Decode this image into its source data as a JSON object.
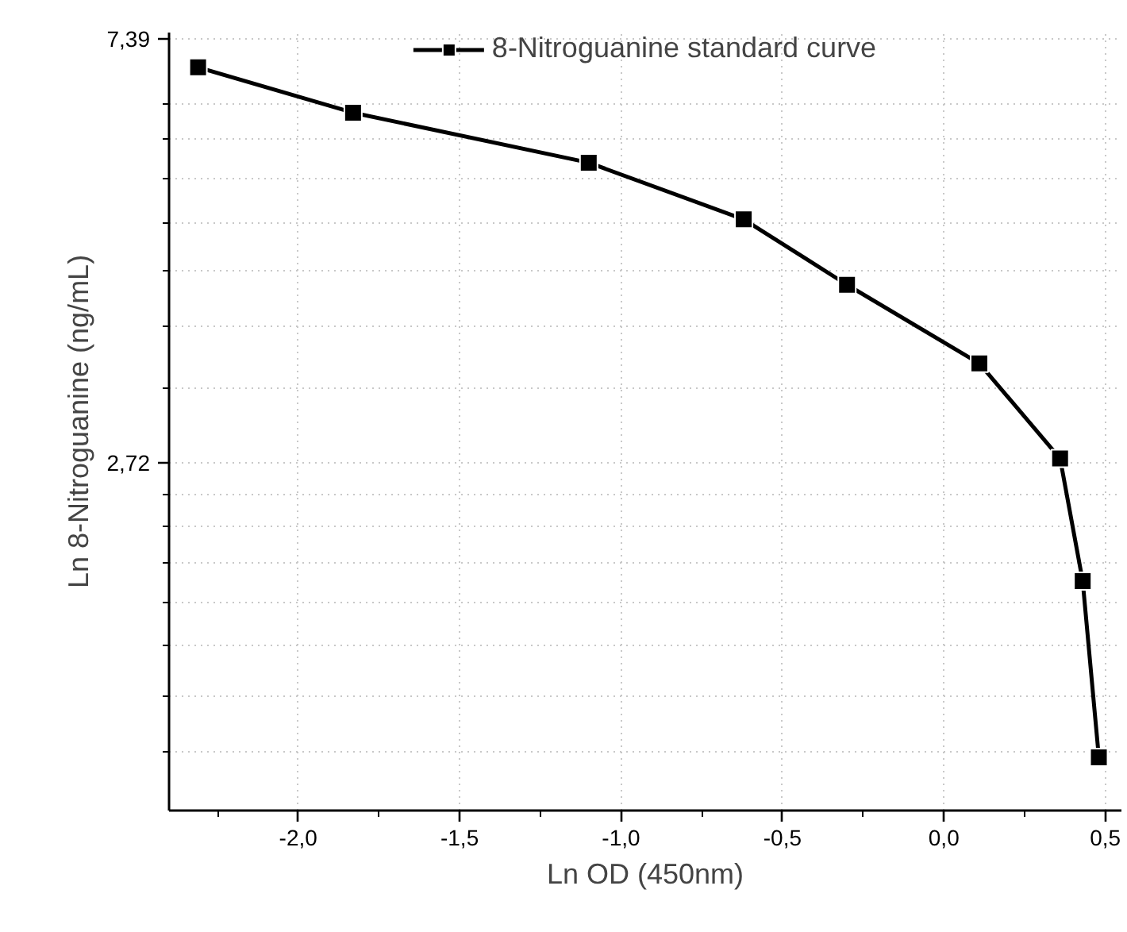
{
  "chart_data": {
    "type": "line",
    "xlabel": "Ln OD (450nm)",
    "ylabel": "Ln 8-Nitroguanine (ng/mL)",
    "x": [
      -2.31,
      -1.83,
      -1.1,
      -0.62,
      -0.3,
      0.11,
      0.36,
      0.43,
      0.48
    ],
    "series": [
      {
        "name": "8-Nitroguanine standard curve",
        "color": "#000000",
        "values": [
          6.91,
          6.21,
          5.52,
          4.83,
          4.14,
          3.44,
          2.75,
          2.06,
          1.36
        ]
      }
    ],
    "xlim": [
      -2.4,
      0.55
    ],
    "ylim": [
      1.2,
      7.5
    ],
    "log": "y",
    "xticks": [
      {
        "value": -2.25,
        "label": null
      },
      {
        "value": -2.0,
        "label": "-2,0"
      },
      {
        "value": -1.75,
        "label": null
      },
      {
        "value": -1.5,
        "label": "-1,5"
      },
      {
        "value": -1.25,
        "label": null
      },
      {
        "value": -1.0,
        "label": "-1,0"
      },
      {
        "value": -0.75,
        "label": null
      },
      {
        "value": -0.5,
        "label": "-0,5"
      },
      {
        "value": -0.25,
        "label": null
      },
      {
        "value": 0.0,
        "label": "0,0"
      },
      {
        "value": 0.25,
        "label": null
      },
      {
        "value": 0.5,
        "label": "0,5"
      }
    ],
    "yticks": [
      {
        "value": 1.38,
        "label": null
      },
      {
        "value": 1.57,
        "label": null
      },
      {
        "value": 1.77,
        "label": null
      },
      {
        "value": 1.96,
        "label": null
      },
      {
        "value": 2.15,
        "label": null
      },
      {
        "value": 2.34,
        "label": null
      },
      {
        "value": 2.53,
        "label": null
      },
      {
        "value": 2.72,
        "label": "2,72"
      },
      {
        "value": 3.24,
        "label": null
      },
      {
        "value": 3.76,
        "label": null
      },
      {
        "value": 4.28,
        "label": null
      },
      {
        "value": 4.79,
        "label": null
      },
      {
        "value": 5.31,
        "label": null
      },
      {
        "value": 5.83,
        "label": null
      },
      {
        "value": 6.35,
        "label": null
      },
      {
        "value": 7.39,
        "label": "7,39"
      }
    ],
    "grid": true,
    "legend": "top",
    "marker": "square",
    "line_style": "solid"
  }
}
